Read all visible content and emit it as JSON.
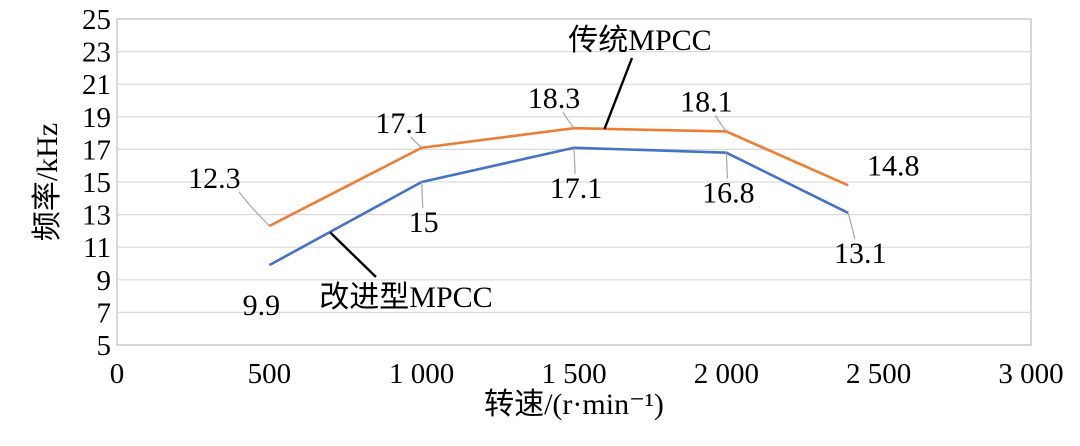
{
  "chart_data": {
    "type": "line",
    "title": "",
    "xlabel": "转速/(r·min⁻¹)",
    "ylabel": "频率/kHz",
    "xlim": [
      0,
      3000
    ],
    "ylim": [
      5,
      25
    ],
    "x_ticks": [
      0,
      500,
      1000,
      1500,
      2000,
      2500,
      3000
    ],
    "x_tick_labels": [
      "0",
      "500",
      "1 000",
      "1 500",
      "2 000",
      "2 500",
      "3 000"
    ],
    "y_ticks": [
      5,
      7,
      9,
      11,
      13,
      15,
      17,
      19,
      21,
      23,
      25
    ],
    "y_tick_labels": [
      "5",
      "7",
      "9",
      "11",
      "13",
      "15",
      "17",
      "19",
      "21",
      "23",
      "25"
    ],
    "grid": "horizontal",
    "x": [
      500,
      1000,
      1500,
      2000,
      2400
    ],
    "series": [
      {
        "name": "传统MPCC",
        "color": "#ED7D31",
        "values": [
          12.3,
          17.1,
          18.3,
          18.1,
          14.8
        ],
        "labels": [
          "12.3",
          "17.1",
          "18.3",
          "18.1",
          "14.8"
        ]
      },
      {
        "name": "改进型MPCC",
        "color": "#4472C4",
        "values": [
          9.9,
          15,
          17.1,
          16.8,
          13.1
        ],
        "labels": [
          "9.9",
          "15",
          "17.1",
          "16.8",
          "13.1"
        ]
      }
    ]
  }
}
